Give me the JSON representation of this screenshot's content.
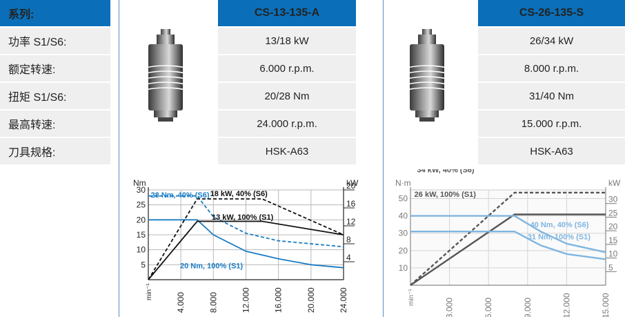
{
  "labels": {
    "header": "系列:",
    "rows": [
      "功率 S1/S6:",
      "额定转速:",
      "扭矩 S1/S6:",
      "最高转速:",
      "刀具规格:"
    ]
  },
  "products": [
    {
      "model": "CS-13-135-A",
      "specs": [
        "13/18 kW",
        "6.000 r.p.m.",
        "20/28 Nm",
        "24.000 r.p.m.",
        "HSK-A63"
      ]
    },
    {
      "model": "CS-26-135-S",
      "specs": [
        "26/34 kW",
        "8.000 r.p.m.",
        "31/40 Nm",
        "15.000 r.p.m.",
        "HSK-A63"
      ]
    }
  ],
  "colors": {
    "header_bg": "#0a6fb8",
    "cell_bg": "#efefef",
    "torque": "#1a7cc4",
    "power": "#111111"
  },
  "chart_data": [
    {
      "type": "line",
      "left_axis_label": "Nm",
      "right_axis_label": "kW",
      "x_unit_label": "min⁻¹",
      "xlim": [
        0,
        24000
      ],
      "ylim_left": [
        0,
        30
      ],
      "ylim_right": [
        0,
        20
      ],
      "x_ticks": [
        "4.000",
        "8.000",
        "12.000",
        "16.000",
        "20.000",
        "24.000"
      ],
      "y_ticks_left": [
        "5",
        "10",
        "15",
        "20",
        "25",
        "30"
      ],
      "y_ticks_right": [
        "4",
        "8",
        "12",
        "16",
        "20"
      ],
      "series": [
        {
          "name": "28 Nm, 40% (S6)",
          "axis": "left",
          "style": "dashed",
          "color": "#1a7cc4",
          "points": [
            [
              0,
              28
            ],
            [
              6000,
              28
            ],
            [
              8000,
              21
            ],
            [
              12000,
              15.5
            ],
            [
              16000,
              13
            ],
            [
              20000,
              12
            ],
            [
              24000,
              11
            ]
          ]
        },
        {
          "name": "20 Nm, 100% (S1)",
          "axis": "left",
          "style": "solid",
          "color": "#1a7cc4",
          "points": [
            [
              0,
              20
            ],
            [
              6000,
              20
            ],
            [
              8000,
              15
            ],
            [
              12000,
              9.5
            ],
            [
              16000,
              7
            ],
            [
              20000,
              5
            ],
            [
              24000,
              4
            ]
          ]
        },
        {
          "name": "18 kW, 40% (S6)",
          "axis": "right",
          "style": "dashed",
          "color": "#111111",
          "points": [
            [
              0,
              0
            ],
            [
              6000,
              18
            ],
            [
              14000,
              18
            ],
            [
              24000,
              10
            ]
          ]
        },
        {
          "name": "13 kW, 100% (S1)",
          "axis": "right",
          "style": "solid",
          "color": "#111111",
          "points": [
            [
              0,
              0
            ],
            [
              6000,
              13
            ],
            [
              14000,
              13
            ],
            [
              24000,
              10
            ]
          ]
        }
      ]
    },
    {
      "type": "line",
      "left_axis_label": "N·m",
      "right_axis_label": "kW",
      "x_unit_label": "min⁻¹",
      "xlim": [
        0,
        15000
      ],
      "ylim_left": [
        0,
        55
      ],
      "ylim_right": [
        0,
        35
      ],
      "x_ticks": [
        "3.000",
        "6.000",
        "9.000",
        "12.000",
        "15.000"
      ],
      "y_ticks_left": [
        "10",
        "20",
        "30",
        "40",
        "50"
      ],
      "y_ticks_right": [
        "5",
        "10",
        "15",
        "20",
        "25",
        "30"
      ],
      "series": [
        {
          "name": "34 kW, 40% (S6)",
          "axis": "right",
          "style": "dashed",
          "color": "#555555",
          "points": [
            [
              0,
              0
            ],
            [
              8000,
              34
            ],
            [
              15000,
              34
            ]
          ]
        },
        {
          "name": "26 kW, 100% (S1)",
          "axis": "right",
          "style": "solid",
          "color": "#555555",
          "points": [
            [
              0,
              0
            ],
            [
              8000,
              26
            ],
            [
              15000,
              26
            ]
          ]
        },
        {
          "name": "40 Nm, 40% (S6)",
          "axis": "left",
          "style": "solid",
          "color": "#7fb5e0",
          "points": [
            [
              0,
              40
            ],
            [
              8000,
              40
            ],
            [
              10000,
              31
            ],
            [
              12000,
              24
            ],
            [
              15000,
              19
            ]
          ]
        },
        {
          "name": "31 Nm, 100% (S1)",
          "axis": "left",
          "style": "solid",
          "color": "#7fb5e0",
          "points": [
            [
              0,
              31
            ],
            [
              8000,
              31
            ],
            [
              10000,
              23
            ],
            [
              12000,
              18
            ],
            [
              15000,
              15
            ]
          ]
        }
      ]
    }
  ]
}
